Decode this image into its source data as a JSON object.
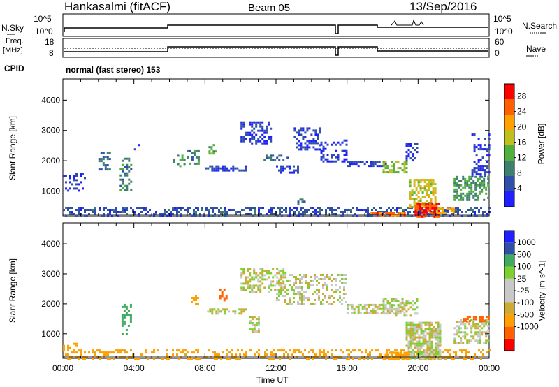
{
  "header": {
    "title": "Hankasalmi (fitACF)",
    "beam": "Beam 05",
    "date": "13/Sep/2016"
  },
  "top_panels": {
    "nsky_label": "N.Sky",
    "nsearch_label": "N.Search",
    "nsky_ticks": [
      "10^5",
      "10^0"
    ],
    "nsearch_ticks": [
      "10^5",
      "10^0"
    ],
    "freq_label_1": "Freq.",
    "freq_label_2": "[MHz]",
    "freq_ticks": [
      "18",
      "8"
    ],
    "nave_label": "Nave",
    "nave_ticks": [
      "60",
      "0"
    ],
    "cpid_label": "CPID",
    "mode_text": "normal (fast stereo) 153"
  },
  "colors": {
    "power_scale": [
      "#1f1fff",
      "#2f4fa8",
      "#3f7f6f",
      "#4faf3f",
      "#bfbf1f",
      "#ffa000",
      "#ff6000",
      "#ff0000"
    ],
    "velocity_scale": [
      "#ff0000",
      "#ff6000",
      "#ffa000",
      "#ccaa33",
      "#c8c8c8",
      "#c8c8c8",
      "#7ecf30",
      "#3faa60",
      "#2f4fa8",
      "#1f1fff"
    ]
  },
  "chart_data": [
    {
      "type": "heatmap",
      "name": "power",
      "ylabel": "Slant Range [km]",
      "yticks": [
        "4000",
        "3000",
        "2000",
        "1000"
      ],
      "ylim": [
        180,
        4700
      ],
      "colorbar_label": "Power [dB]",
      "colorbar_ticks": [
        "28",
        "24",
        "20",
        "16",
        "12",
        "8",
        "4"
      ],
      "colorbar_range": [
        0,
        30
      ],
      "patches": [
        {
          "t": [
            0.0,
            24.0
          ],
          "r": [
            180,
            480
          ],
          "v": 6,
          "d": 0.45
        },
        {
          "t": [
            0.0,
            1.2
          ],
          "r": [
            1000,
            1600
          ],
          "v": 4,
          "d": 0.25
        },
        {
          "t": [
            2.0,
            2.6
          ],
          "r": [
            1700,
            2300
          ],
          "v": 8,
          "d": 0.35
        },
        {
          "t": [
            3.2,
            3.8
          ],
          "r": [
            1000,
            2100
          ],
          "v": 10,
          "d": 0.4
        },
        {
          "t": [
            4.0,
            4.3
          ],
          "r": [
            2300,
            2550
          ],
          "v": 6,
          "d": 0.4
        },
        {
          "t": [
            6.2,
            6.8
          ],
          "r": [
            1800,
            2200
          ],
          "v": 12,
          "d": 0.4
        },
        {
          "t": [
            7.0,
            7.6
          ],
          "r": [
            1900,
            2350
          ],
          "v": 10,
          "d": 0.35
        },
        {
          "t": [
            8.2,
            8.6
          ],
          "r": [
            2200,
            2550
          ],
          "v": 14,
          "d": 0.45
        },
        {
          "t": [
            8.0,
            10.3
          ],
          "r": [
            1650,
            1850
          ],
          "v": 4,
          "d": 0.55
        },
        {
          "t": [
            10.0,
            11.7
          ],
          "r": [
            2600,
            3300
          ],
          "v": 4,
          "d": 0.5
        },
        {
          "t": [
            11.3,
            12.6
          ],
          "r": [
            2000,
            2200
          ],
          "v": 8,
          "d": 0.5
        },
        {
          "t": [
            12.0,
            13.2
          ],
          "r": [
            1600,
            1850
          ],
          "v": 4,
          "d": 0.5
        },
        {
          "t": [
            13.0,
            14.5
          ],
          "r": [
            2400,
            3100
          ],
          "v": 4,
          "d": 0.45
        },
        {
          "t": [
            13.2,
            13.6
          ],
          "r": [
            550,
            750
          ],
          "v": 8,
          "d": 0.5
        },
        {
          "t": [
            14.5,
            16.0
          ],
          "r": [
            2000,
            2700
          ],
          "v": 4,
          "d": 0.35
        },
        {
          "t": [
            16.0,
            18.2
          ],
          "r": [
            1800,
            2000
          ],
          "v": 4,
          "d": 0.55
        },
        {
          "t": [
            18.0,
            19.3
          ],
          "r": [
            1600,
            2000
          ],
          "v": 16,
          "d": 0.55
        },
        {
          "t": [
            19.3,
            20.0
          ],
          "r": [
            2000,
            2600
          ],
          "v": 4,
          "d": 0.45
        },
        {
          "t": [
            17.3,
            19.2
          ],
          "r": [
            180,
            300
          ],
          "v": 26,
          "d": 0.7
        },
        {
          "t": [
            19.5,
            21.0
          ],
          "r": [
            500,
            1400
          ],
          "v": 18,
          "d": 0.6
        },
        {
          "t": [
            19.8,
            21.1
          ],
          "r": [
            180,
            600
          ],
          "v": 28,
          "d": 0.8
        },
        {
          "t": [
            21.0,
            22.0
          ],
          "r": [
            300,
            450
          ],
          "v": 20,
          "d": 0.6
        },
        {
          "t": [
            22.0,
            24.0
          ],
          "r": [
            700,
            1500
          ],
          "v": 12,
          "d": 0.55
        },
        {
          "t": [
            23.0,
            24.0
          ],
          "r": [
            1500,
            2900
          ],
          "v": 4,
          "d": 0.3
        }
      ]
    },
    {
      "type": "heatmap",
      "name": "velocity",
      "ylabel": "Slant Range [km]",
      "yticks": [
        "4000",
        "3000",
        "2000",
        "1000"
      ],
      "ylim": [
        180,
        4700
      ],
      "colorbar_label": "Velocity [m s^-1]",
      "colorbar_ticks": [
        "1000",
        "500",
        "100",
        "25",
        "-25",
        "-100",
        "-500",
        "-1000"
      ],
      "colorbar_range": [
        -1200,
        1200
      ],
      "patches": [
        {
          "t": [
            0.0,
            24.0
          ],
          "r": [
            180,
            480
          ],
          "v": -150,
          "d": 0.35
        },
        {
          "t": [
            0.0,
            0.8
          ],
          "r": [
            500,
            700
          ],
          "v": -300,
          "d": 0.5
        },
        {
          "t": [
            3.3,
            3.8
          ],
          "r": [
            1000,
            2000
          ],
          "v": 200,
          "d": 0.35
        },
        {
          "t": [
            7.2,
            7.6
          ],
          "r": [
            1900,
            2300
          ],
          "v": -400,
          "d": 0.5
        },
        {
          "t": [
            8.8,
            9.2
          ],
          "r": [
            2100,
            2500
          ],
          "v": -900,
          "d": 0.55
        },
        {
          "t": [
            8.0,
            10.3
          ],
          "r": [
            1650,
            1850
          ],
          "v": 0,
          "d": 0.5
        },
        {
          "t": [
            10.0,
            12.5
          ],
          "r": [
            2400,
            3200
          ],
          "v": 0,
          "d": 0.45
        },
        {
          "t": [
            12.0,
            16.0
          ],
          "r": [
            2000,
            3000
          ],
          "v": 0,
          "d": 0.35
        },
        {
          "t": [
            16.0,
            19.0
          ],
          "r": [
            1700,
            2000
          ],
          "v": 0,
          "d": 0.55
        },
        {
          "t": [
            18.0,
            20.0
          ],
          "r": [
            1600,
            2200
          ],
          "v": 0,
          "d": 0.5
        },
        {
          "t": [
            19.3,
            21.2
          ],
          "r": [
            200,
            1400
          ],
          "v": 0,
          "d": 0.8
        },
        {
          "t": [
            18.0,
            19.5
          ],
          "r": [
            180,
            400
          ],
          "v": -300,
          "d": 0.6
        },
        {
          "t": [
            22.0,
            24.0
          ],
          "r": [
            700,
            1500
          ],
          "v": 0,
          "d": 0.55
        },
        {
          "t": [
            22.5,
            24.0
          ],
          "r": [
            1400,
            1600
          ],
          "v": -600,
          "d": 0.5
        },
        {
          "t": [
            10.5,
            11.0
          ],
          "r": [
            1100,
            1600
          ],
          "v": 0,
          "d": 0.5
        }
      ]
    }
  ],
  "x_axis": {
    "ticks": [
      "00:00",
      "04:00",
      "08:00",
      "12:00",
      "16:00",
      "20:00",
      "00:00"
    ],
    "label": "Time UT"
  }
}
